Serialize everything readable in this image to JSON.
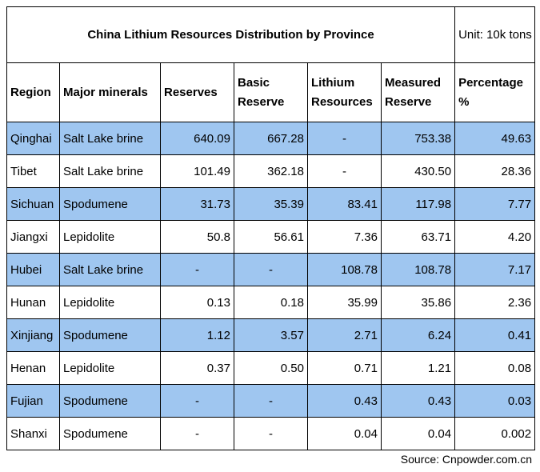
{
  "table": {
    "title": "China Lithium Resources Distribution by Province",
    "unit": "Unit: 10k tons",
    "headers": {
      "region": "Region",
      "major_minerals": "Major minerals",
      "reserves": "Reserves",
      "basic_reserve": "Basic Reserve",
      "lithium_resources": "Lithium Resources",
      "measured_reserve": "Measured Reserve",
      "percentage": "Percentage %"
    },
    "shaded_row_color": "#9fc6f0",
    "rows": [
      {
        "region": "Qinghai",
        "mineral": "Salt Lake brine",
        "reserves": "640.09",
        "basic_reserve": "667.28",
        "lithium_resources": "-",
        "measured_reserve": "753.38",
        "percentage": "49.63",
        "shaded": true
      },
      {
        "region": "Tibet",
        "mineral": "Salt Lake brine",
        "reserves": "101.49",
        "basic_reserve": "362.18",
        "lithium_resources": "-",
        "measured_reserve": "430.50",
        "percentage": "28.36",
        "shaded": false
      },
      {
        "region": "Sichuan",
        "mineral": "Spodumene",
        "reserves": "31.73",
        "basic_reserve": "35.39",
        "lithium_resources": "83.41",
        "measured_reserve": "117.98",
        "percentage": "7.77",
        "shaded": true
      },
      {
        "region": "Jiangxi",
        "mineral": "Lepidolite",
        "reserves": "50.8",
        "basic_reserve": "56.61",
        "lithium_resources": "7.36",
        "measured_reserve": "63.71",
        "percentage": "4.20",
        "shaded": false
      },
      {
        "region": "Hubei",
        "mineral": "Salt Lake brine",
        "reserves": "-",
        "basic_reserve": "-",
        "lithium_resources": "108.78",
        "measured_reserve": "108.78",
        "percentage": "7.17",
        "shaded": true
      },
      {
        "region": "Hunan",
        "mineral": "Lepidolite",
        "reserves": "0.13",
        "basic_reserve": "0.18",
        "lithium_resources": "35.99",
        "measured_reserve": "35.86",
        "percentage": "2.36",
        "shaded": false
      },
      {
        "region": "Xinjiang",
        "mineral": "Spodumene",
        "reserves": "1.12",
        "basic_reserve": "3.57",
        "lithium_resources": "2.71",
        "measured_reserve": "6.24",
        "percentage": "0.41",
        "shaded": true
      },
      {
        "region": "Henan",
        "mineral": "Lepidolite",
        "reserves": "0.37",
        "basic_reserve": "0.50",
        "lithium_resources": "0.71",
        "measured_reserve": "1.21",
        "percentage": "0.08",
        "shaded": false
      },
      {
        "region": "Fujian",
        "mineral": "Spodumene",
        "reserves": "-",
        "basic_reserve": "-",
        "lithium_resources": "0.43",
        "measured_reserve": "0.43",
        "percentage": "0.03",
        "shaded": true
      },
      {
        "region": "Shanxi",
        "mineral": "Spodumene",
        "reserves": "-",
        "basic_reserve": "-",
        "lithium_resources": "0.04",
        "measured_reserve": "0.04",
        "percentage": "0.002",
        "shaded": false
      }
    ]
  },
  "source": "Source: Cnpowder.com.cn"
}
